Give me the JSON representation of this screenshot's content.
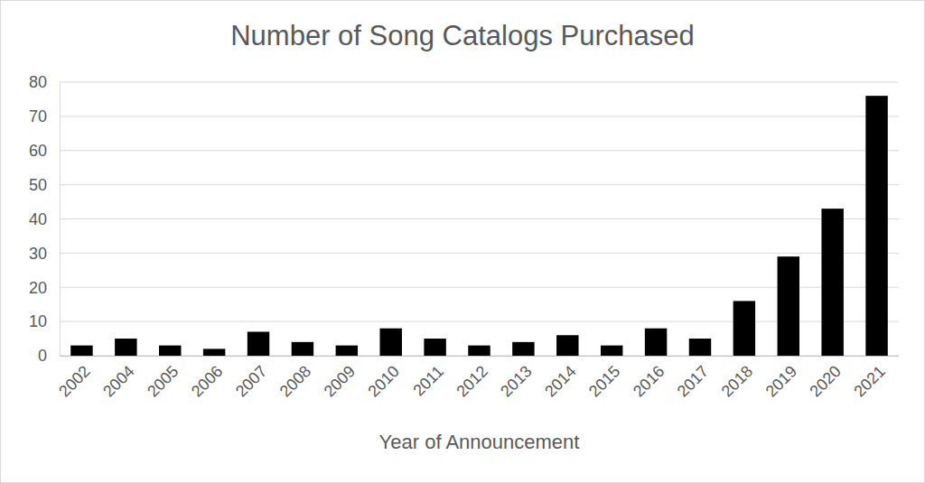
{
  "chart_data": {
    "type": "bar",
    "title": "Number of Song Catalogs Purchased",
    "x_label": "Year of Announcement",
    "categories": [
      "2002",
      "2004",
      "2005",
      "2006",
      "2007",
      "2008",
      "2009",
      "2010",
      "2011",
      "2012",
      "2013",
      "2014",
      "2015",
      "2016",
      "2017",
      "2018",
      "2019",
      "2020",
      "2021"
    ],
    "values": [
      3,
      5,
      3,
      2,
      7,
      4,
      3,
      8,
      5,
      3,
      4,
      6,
      3,
      8,
      5,
      16,
      29,
      43,
      76
    ],
    "color": "#000000",
    "ylim": [
      0,
      80
    ],
    "yticks": [
      0,
      10,
      20,
      30,
      40,
      50,
      60,
      70,
      80
    ],
    "grid": true
  }
}
